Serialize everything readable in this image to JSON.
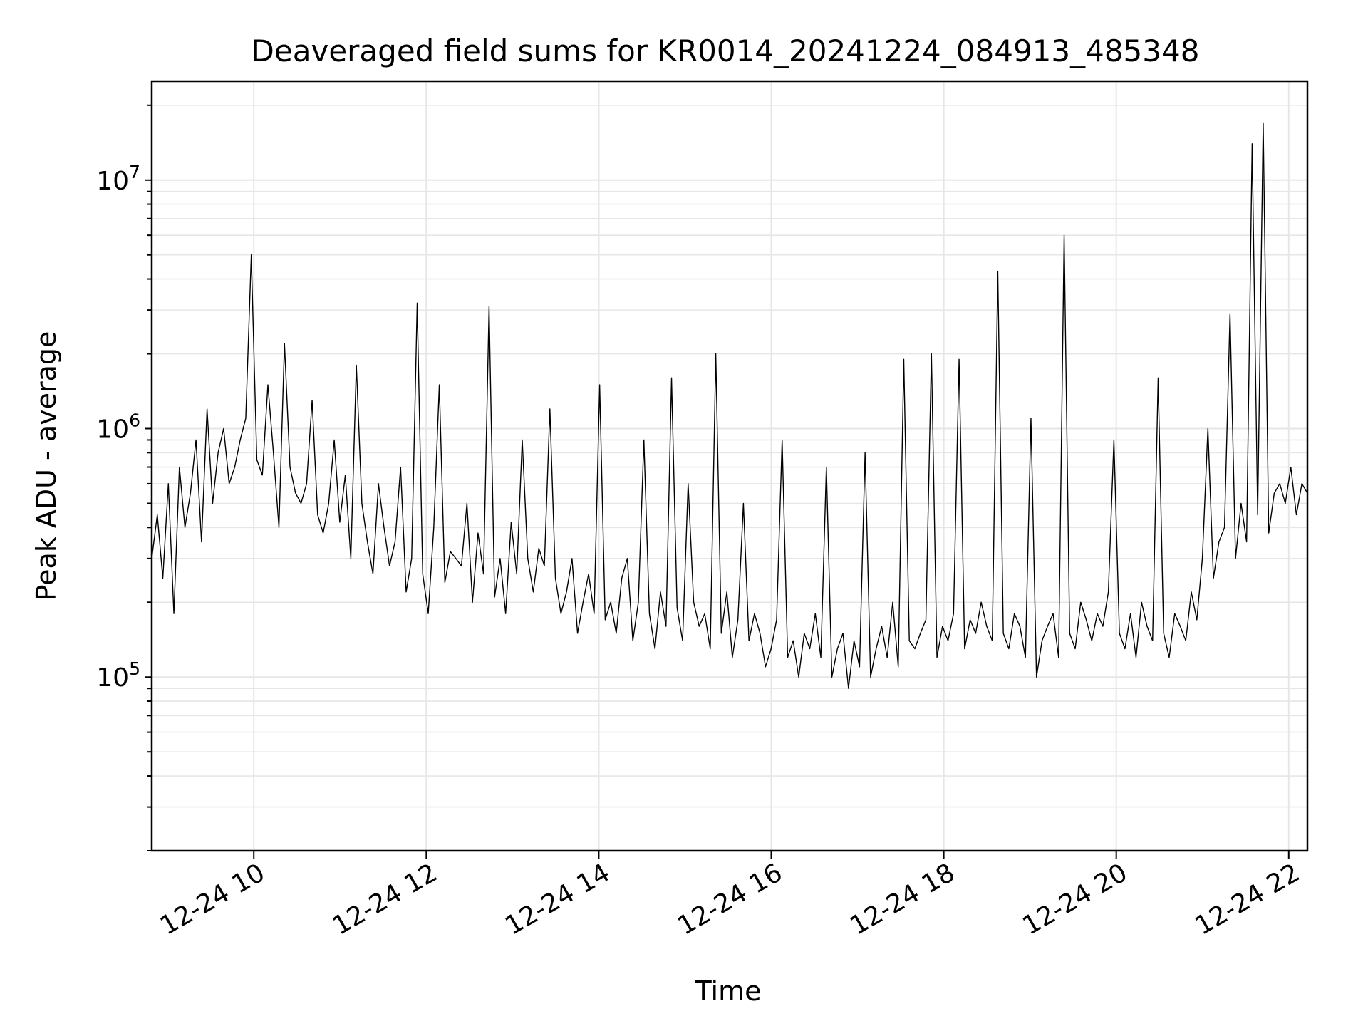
{
  "chart_data": {
    "type": "line",
    "title": "Deaveraged field sums for KR0014_20241224_084913_485348",
    "xlabel": "Time",
    "ylabel": "Peak ADU - average",
    "yscale": "log",
    "ylim": [
      20000,
      25000000
    ],
    "xlim": [
      "12-24 08:49",
      "12-24 22:13"
    ],
    "x_tick_labels": [
      "12-24 10",
      "12-24 12",
      "12-24 14",
      "12-24 16",
      "12-24 18",
      "12-24 20",
      "12-24 22"
    ],
    "y_tick_labels": [
      {
        "base": "10",
        "exp": "5"
      },
      {
        "base": "10",
        "exp": "6"
      },
      {
        "base": "10",
        "exp": "7"
      }
    ],
    "grid": true,
    "line_color": "#000000",
    "series": [
      {
        "x_start": "12-24 08:49",
        "x_end": "12-24 22:13",
        "note_sampling": "approximate envelope",
        "values": [
          300000,
          450000,
          250000,
          600000,
          180000,
          700000,
          400000,
          550000,
          900000,
          350000,
          1200000,
          500000,
          800000,
          1000000,
          600000,
          700000,
          900000,
          1100000,
          5000000,
          750000,
          650000,
          1500000,
          800000,
          400000,
          2200000,
          700000,
          550000,
          500000,
          600000,
          1300000,
          450000,
          380000,
          500000,
          900000,
          420000,
          650000,
          300000,
          1800000,
          500000,
          350000,
          260000,
          600000,
          400000,
          280000,
          350000,
          700000,
          220000,
          300000,
          3200000,
          260000,
          180000,
          400000,
          1500000,
          240000,
          320000,
          300000,
          280000,
          500000,
          200000,
          380000,
          260000,
          3100000,
          210000,
          300000,
          180000,
          420000,
          260000,
          900000,
          300000,
          220000,
          330000,
          280000,
          1200000,
          250000,
          180000,
          220000,
          300000,
          150000,
          200000,
          260000,
          180000,
          1500000,
          170000,
          200000,
          150000,
          250000,
          300000,
          140000,
          200000,
          900000,
          180000,
          130000,
          220000,
          160000,
          1600000,
          190000,
          140000,
          600000,
          200000,
          160000,
          180000,
          130000,
          2000000,
          150000,
          220000,
          120000,
          170000,
          500000,
          140000,
          180000,
          150000,
          110000,
          130000,
          170000,
          900000,
          120000,
          140000,
          100000,
          150000,
          130000,
          180000,
          120000,
          700000,
          100000,
          130000,
          150000,
          90000,
          140000,
          110000,
          800000,
          100000,
          130000,
          160000,
          120000,
          200000,
          110000,
          1900000,
          140000,
          130000,
          150000,
          170000,
          2000000,
          120000,
          160000,
          140000,
          180000,
          1900000,
          130000,
          170000,
          150000,
          200000,
          160000,
          140000,
          4300000,
          150000,
          130000,
          180000,
          160000,
          120000,
          1100000,
          100000,
          140000,
          160000,
          180000,
          120000,
          6000000,
          150000,
          130000,
          200000,
          170000,
          140000,
          180000,
          160000,
          220000,
          900000,
          150000,
          130000,
          180000,
          120000,
          200000,
          160000,
          140000,
          1600000,
          150000,
          120000,
          180000,
          160000,
          140000,
          220000,
          170000,
          300000,
          1000000,
          250000,
          350000,
          400000,
          2900000,
          300000,
          500000,
          350000,
          14000000,
          450000,
          17000000,
          380000,
          550000,
          600000,
          500000,
          700000,
          450000,
          600000,
          550000
        ]
      }
    ]
  }
}
